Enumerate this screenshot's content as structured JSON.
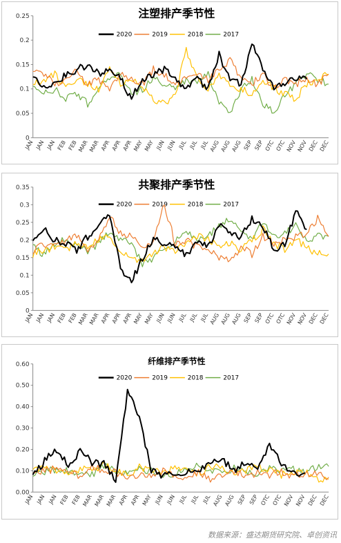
{
  "charts_meta": {
    "months": [
      "JAN",
      "JAN",
      "JAN",
      "FEB",
      "FEB",
      "MAR",
      "MAR",
      "APR",
      "APR",
      "APR",
      "MAY",
      "MAY",
      "JUN",
      "JUN",
      "JUL",
      "JUL",
      "JUL",
      "AUG",
      "AUG",
      "AUG",
      "SEP",
      "SEP",
      "OTC",
      "OTC",
      "NOV",
      "NOV",
      "DEC",
      "DEC"
    ]
  },
  "colors": {
    "2020": "#000000",
    "2019": "#ed7d31",
    "2018": "#ffc000",
    "2017": "#70ad47"
  },
  "chart_data": [
    {
      "type": "line",
      "title": "注塑排产季节性",
      "ylim": [
        0,
        0.25
      ],
      "yticks": [
        "0",
        "0.05",
        "0.1",
        "0.15",
        "0.2",
        "0.25"
      ],
      "categories": [
        "JAN",
        "JAN",
        "JAN",
        "FEB",
        "FEB",
        "MAR",
        "MAR",
        "APR",
        "APR",
        "APR",
        "MAY",
        "MAY",
        "JUN",
        "JUN",
        "JUL",
        "JUL",
        "JUL",
        "AUG",
        "AUG",
        "AUG",
        "SEP",
        "SEP",
        "OTC",
        "OTC",
        "NOV",
        "NOV",
        "DEC",
        "DEC"
      ],
      "legend": [
        "2020",
        "2019",
        "2018",
        "2017"
      ],
      "series": [
        {
          "name": "2020",
          "values": [
            0.13,
            0.1,
            0.11,
            0.13,
            0.14,
            0.15,
            0.13,
            0.14,
            0.12,
            0.08,
            0.12,
            0.13,
            0.14,
            0.12,
            0.1,
            0.12,
            0.1,
            0.17,
            0.12,
            0.11,
            0.19,
            0.14,
            0.1,
            0.11,
            0.12,
            0.12,
            null,
            null
          ]
        },
        {
          "name": "2019",
          "values": [
            0.14,
            0.13,
            0.11,
            0.12,
            0.14,
            0.11,
            0.12,
            0.1,
            0.13,
            0.12,
            0.11,
            0.14,
            0.13,
            0.11,
            0.12,
            0.13,
            0.12,
            0.14,
            0.16,
            0.12,
            0.11,
            0.13,
            0.1,
            0.12,
            0.11,
            0.12,
            0.11,
            0.13
          ]
        },
        {
          "name": "2018",
          "values": [
            0.11,
            0.12,
            0.13,
            0.1,
            0.12,
            0.11,
            0.1,
            0.14,
            0.11,
            0.12,
            0.1,
            0.08,
            0.07,
            0.09,
            0.18,
            0.12,
            0.1,
            0.13,
            0.11,
            0.1,
            0.09,
            0.12,
            0.1,
            0.09,
            0.08,
            0.11,
            0.12,
            0.13
          ]
        },
        {
          "name": "2017",
          "values": [
            0.1,
            0.09,
            0.1,
            0.08,
            0.09,
            0.07,
            0.1,
            0.12,
            0.13,
            0.09,
            0.1,
            0.12,
            0.11,
            0.1,
            0.12,
            0.11,
            0.13,
            0.07,
            0.05,
            0.1,
            0.12,
            0.07,
            0.05,
            0.09,
            0.11,
            0.13,
            0.12,
            0.11
          ]
        }
      ]
    },
    {
      "type": "line",
      "title": "共聚排产季节性",
      "ylim": [
        0,
        0.35
      ],
      "yticks": [
        "0",
        "0.05",
        "0.1",
        "0.15",
        "0.2",
        "0.25",
        "0.3",
        "0.35"
      ],
      "categories": [
        "JAN",
        "JAN",
        "JAN",
        "FEB",
        "FEB",
        "MAR",
        "MAR",
        "APR",
        "APR",
        "APR",
        "MAY",
        "MAY",
        "JUN",
        "JUN",
        "JUL",
        "JUL",
        "JUL",
        "AUG",
        "AUG",
        "AUG",
        "SEP",
        "SEP",
        "OTC",
        "OTC",
        "NOV",
        "NOV",
        "DEC",
        "DEC"
      ],
      "legend": [
        "2020",
        "2019",
        "2018",
        "2017"
      ],
      "series": [
        {
          "name": "2020",
          "values": [
            0.19,
            0.23,
            0.2,
            0.19,
            0.17,
            0.21,
            0.24,
            0.27,
            0.12,
            0.08,
            0.15,
            0.2,
            0.19,
            0.18,
            0.16,
            0.19,
            0.18,
            0.24,
            0.22,
            0.21,
            0.26,
            0.24,
            0.17,
            0.19,
            0.28,
            0.23,
            null,
            null
          ]
        },
        {
          "name": "2019",
          "values": [
            0.17,
            0.19,
            0.18,
            0.2,
            0.21,
            0.17,
            0.2,
            0.27,
            0.22,
            0.21,
            0.18,
            0.2,
            0.3,
            0.19,
            0.2,
            0.18,
            0.17,
            0.15,
            0.14,
            0.18,
            0.16,
            0.21,
            0.19,
            0.2,
            0.21,
            0.22,
            0.26,
            0.21
          ]
        },
        {
          "name": "2018",
          "values": [
            0.16,
            0.17,
            0.18,
            0.17,
            0.19,
            0.18,
            0.2,
            0.21,
            0.16,
            0.15,
            0.14,
            0.16,
            0.18,
            0.17,
            0.19,
            0.21,
            0.2,
            0.18,
            0.19,
            0.17,
            0.2,
            0.23,
            0.19,
            0.17,
            0.2,
            0.18,
            0.16,
            0.16
          ]
        },
        {
          "name": "2017",
          "values": [
            0.18,
            0.16,
            0.19,
            0.2,
            0.18,
            0.17,
            0.19,
            0.22,
            0.2,
            0.19,
            0.13,
            0.15,
            0.18,
            0.2,
            0.22,
            0.2,
            0.21,
            0.24,
            0.26,
            0.22,
            0.2,
            0.25,
            0.21,
            0.22,
            0.24,
            0.2,
            0.21,
            0.21
          ]
        }
      ]
    },
    {
      "type": "line",
      "title": "纤维排产季节性",
      "ylim": [
        0,
        0.6
      ],
      "yticks": [
        "0.00",
        "0.10",
        "0.20",
        "0.30",
        "0.40",
        "0.50",
        "0.60"
      ],
      "categories": [
        "JAN",
        "JAN",
        "JAN",
        "FEB",
        "FEB",
        "MAR",
        "MAR",
        "MAR",
        "APR",
        "APR",
        "MAY",
        "JUN",
        "JUN",
        "JUL",
        "JUL",
        "JUL",
        "AUG",
        "AUG",
        "SEP",
        "SEP",
        "OTC",
        "OTC",
        "NOV",
        "NOV",
        "DEC",
        "DEC"
      ],
      "legend": [
        "2020",
        "2019",
        "2018",
        "2017"
      ],
      "series": [
        {
          "name": "2020",
          "values": [
            0.07,
            0.15,
            0.2,
            0.12,
            0.19,
            0.14,
            0.13,
            0.05,
            0.47,
            0.35,
            0.1,
            0.08,
            0.09,
            0.1,
            0.09,
            0.14,
            0.15,
            0.1,
            0.14,
            0.1,
            0.22,
            0.13,
            0.09,
            0.09,
            null,
            null
          ]
        },
        {
          "name": "2019",
          "values": [
            0.09,
            0.1,
            0.11,
            0.09,
            0.08,
            0.12,
            0.1,
            0.09,
            0.06,
            0.08,
            0.07,
            0.1,
            0.08,
            0.07,
            0.09,
            0.06,
            0.08,
            0.1,
            0.07,
            0.09,
            0.08,
            0.1,
            0.07,
            0.09,
            0.08,
            0.07
          ]
        },
        {
          "name": "2018",
          "values": [
            0.11,
            0.12,
            0.1,
            0.09,
            0.11,
            0.1,
            0.13,
            0.1,
            0.08,
            0.12,
            0.1,
            0.09,
            0.11,
            0.1,
            0.09,
            0.12,
            0.11,
            0.09,
            0.1,
            0.12,
            0.1,
            0.08,
            0.09,
            0.1,
            0.06,
            0.06
          ]
        },
        {
          "name": "2017",
          "values": [
            0.08,
            0.09,
            0.11,
            0.1,
            0.09,
            0.08,
            0.12,
            0.1,
            0.09,
            0.11,
            0.1,
            0.08,
            0.09,
            0.11,
            0.12,
            0.1,
            0.09,
            0.11,
            0.1,
            0.09,
            0.12,
            0.1,
            0.11,
            0.1,
            0.12,
            0.12
          ]
        }
      ]
    }
  ],
  "source_text": "数据来源：盛达期货研究院、卓创资讯"
}
